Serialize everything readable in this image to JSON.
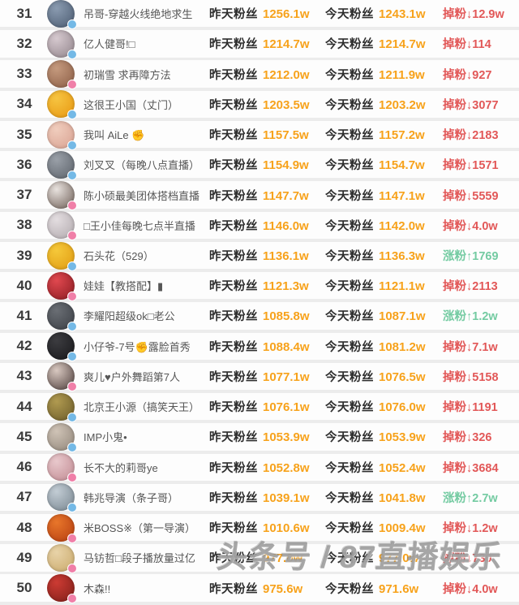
{
  "watermark": "头条号 / 87直播娱乐",
  "columns": {
    "yesterday_label": "昨天粉丝",
    "today_label": "今天粉丝"
  },
  "colors": {
    "value_orange": "#f7a21b",
    "drop_red": "#e25858",
    "gain_green": "#74cba2",
    "badge_blue": "#74b9e6",
    "badge_pink": "#f07fa8"
  },
  "rows": [
    {
      "rank": "31",
      "name": "吊哥-穿越火线绝地求生",
      "yesterday": "1256.1w",
      "today": "1243.1w",
      "change_text": "掉粉↓12.9w",
      "trend": "down",
      "badge": "badge_blue",
      "avatar1": "#8a9bb0",
      "avatar2": "#4a5a70"
    },
    {
      "rank": "32",
      "name": "亿人健哥!□",
      "yesterday": "1214.7w",
      "today": "1214.7w",
      "change_text": "掉粉↓114",
      "trend": "down",
      "badge": "badge_blue",
      "avatar1": "#d6c9cf",
      "avatar2": "#8f8289"
    },
    {
      "rank": "33",
      "name": "初瑞雪 求再障方法",
      "yesterday": "1212.0w",
      "today": "1211.9w",
      "change_text": "掉粉↓927",
      "trend": "down",
      "badge": "badge_pink",
      "avatar1": "#c59a7e",
      "avatar2": "#8a5c44"
    },
    {
      "rank": "34",
      "name": "这很王小国（丈门）",
      "yesterday": "1203.5w",
      "today": "1203.2w",
      "change_text": "掉粉↓3077",
      "trend": "down",
      "badge": "badge_blue",
      "avatar1": "#f6c441",
      "avatar2": "#e8960f"
    },
    {
      "rank": "35",
      "name": "我叫 AiLe ✊",
      "yesterday": "1157.5w",
      "today": "1157.2w",
      "change_text": "掉粉↓2183",
      "trend": "down",
      "badge": "badge_blue",
      "avatar1": "#f0cdbd",
      "avatar2": "#d8a090"
    },
    {
      "rank": "36",
      "name": "刘叉叉（每晚八点直播）",
      "yesterday": "1154.9w",
      "today": "1154.7w",
      "change_text": "掉粉↓1571",
      "trend": "down",
      "badge": "badge_blue",
      "avatar1": "#9aa0a8",
      "avatar2": "#5a6068"
    },
    {
      "rank": "37",
      "name": "陈小硕最美团体搭档直播",
      "yesterday": "1147.7w",
      "today": "1147.1w",
      "change_text": "掉粉↓5559",
      "trend": "down",
      "badge": "badge_pink",
      "avatar1": "#e8e2de",
      "avatar2": "#6a5a52"
    },
    {
      "rank": "38",
      "name": "□王小佳每晚七点半直播",
      "yesterday": "1146.0w",
      "today": "1142.0w",
      "change_text": "掉粉↓4.0w",
      "trend": "down",
      "badge": "badge_pink",
      "avatar1": "#e3dde0",
      "avatar2": "#b0a8ac"
    },
    {
      "rank": "39",
      "name": "石头花（529）",
      "yesterday": "1136.1w",
      "today": "1136.3w",
      "change_text": "涨粉↑1769",
      "trend": "up",
      "badge": "badge_blue",
      "avatar1": "#f5c83a",
      "avatar2": "#e09a10"
    },
    {
      "rank": "40",
      "name": "娃娃【教搭配】▮",
      "yesterday": "1121.3w",
      "today": "1121.1w",
      "change_text": "掉粉↓2113",
      "trend": "down",
      "badge": "badge_pink",
      "avatar1": "#e0484f",
      "avatar2": "#8a1a20"
    },
    {
      "rank": "41",
      "name": "李耀阳超级ok□老公",
      "yesterday": "1085.8w",
      "today": "1087.1w",
      "change_text": "涨粉↑1.2w",
      "trend": "up",
      "badge": "badge_blue",
      "avatar1": "#6a6e74",
      "avatar2": "#3a3e44"
    },
    {
      "rank": "42",
      "name": "小仔爷-7号✊露脸首秀",
      "yesterday": "1088.4w",
      "today": "1081.2w",
      "change_text": "掉粉↓7.1w",
      "trend": "down",
      "badge": "badge_blue",
      "avatar1": "#3c3c40",
      "avatar2": "#17171a"
    },
    {
      "rank": "43",
      "name": "爽儿♥户外舞蹈第7人",
      "yesterday": "1077.1w",
      "today": "1076.5w",
      "change_text": "掉粉↓5158",
      "trend": "down",
      "badge": "badge_pink",
      "avatar1": "#d8c8c0",
      "avatar2": "#4a3a38"
    },
    {
      "rank": "44",
      "name": "北京王小源（搞笑天王）",
      "yesterday": "1076.1w",
      "today": "1076.0w",
      "change_text": "掉粉↓1191",
      "trend": "down",
      "badge": "badge_blue",
      "avatar1": "#b09a50",
      "avatar2": "#6a5a28"
    },
    {
      "rank": "45",
      "name": "IMP小鬼•",
      "yesterday": "1053.9w",
      "today": "1053.9w",
      "change_text": "掉粉↓326",
      "trend": "down",
      "badge": "badge_blue",
      "avatar1": "#cfc3b6",
      "avatar2": "#8f8478"
    },
    {
      "rank": "46",
      "name": "长不大的莉哥ye",
      "yesterday": "1052.8w",
      "today": "1052.4w",
      "change_text": "掉粉↓3684",
      "trend": "down",
      "badge": "badge_pink",
      "avatar1": "#e8c8cc",
      "avatar2": "#c08890"
    },
    {
      "rank": "47",
      "name": "韩兆导演（条子哥）",
      "yesterday": "1039.1w",
      "today": "1041.8w",
      "change_text": "涨粉↑2.7w",
      "trend": "up",
      "badge": "badge_blue",
      "avatar1": "#c2ccd4",
      "avatar2": "#76848e"
    },
    {
      "rank": "48",
      "name": "米BOSS※（第一导演）",
      "yesterday": "1010.6w",
      "today": "1009.4w",
      "change_text": "掉粉↓1.2w",
      "trend": "down",
      "badge": "badge_pink",
      "avatar1": "#e8762a",
      "avatar2": "#b43c10"
    },
    {
      "rank": "49",
      "name": "马钫哲□段子播放量过亿",
      "yesterday": "977.0w",
      "today": "977.0w",
      "change_text": "掉粉↓730",
      "trend": "down",
      "badge": "badge_pink",
      "avatar1": "#e8d3a8",
      "avatar2": "#c9a869"
    },
    {
      "rank": "50",
      "name": "木森!!",
      "yesterday": "975.6w",
      "today": "971.6w",
      "change_text": "掉粉↓4.0w",
      "trend": "down",
      "badge": "badge_pink",
      "avatar1": "#cc3b33",
      "avatar2": "#7e1d18"
    }
  ]
}
